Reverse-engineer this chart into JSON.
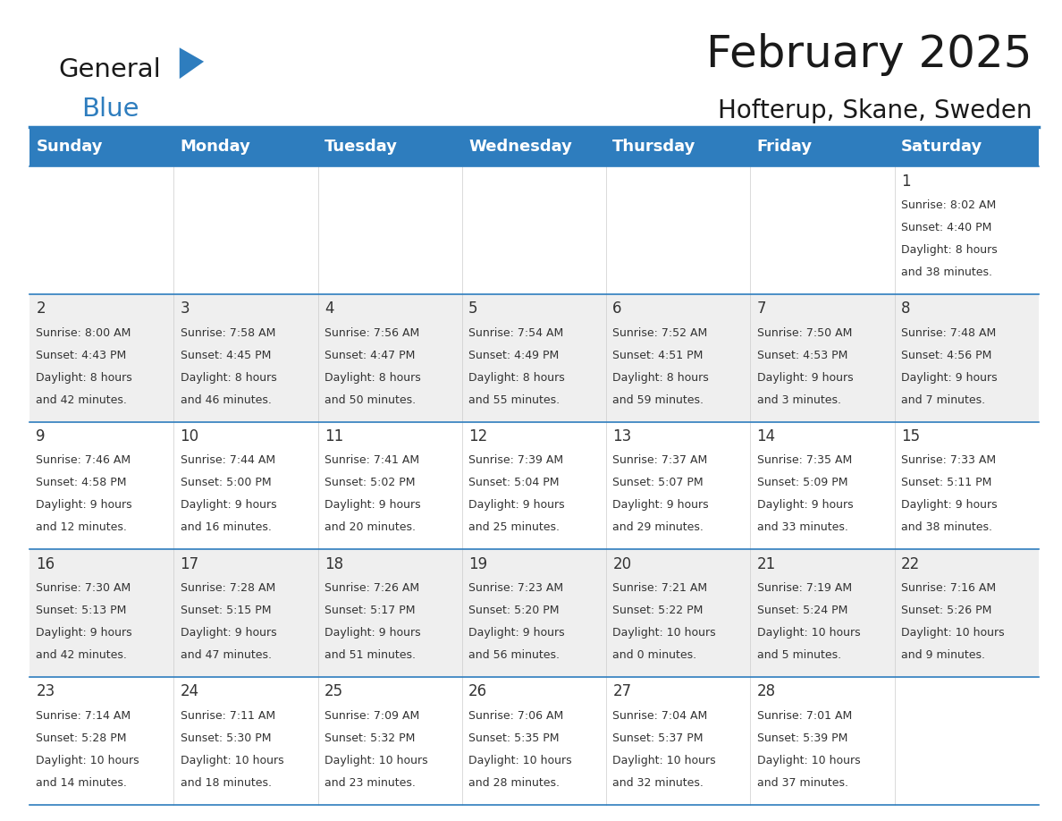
{
  "title": "February 2025",
  "subtitle": "Hofterup, Skane, Sweden",
  "header_bg": "#2E7DBE",
  "header_text_color": "#FFFFFF",
  "cell_bg_white": "#FFFFFF",
  "cell_bg_light": "#EFEFEF",
  "day_headers": [
    "Sunday",
    "Monday",
    "Tuesday",
    "Wednesday",
    "Thursday",
    "Friday",
    "Saturday"
  ],
  "days": [
    {
      "day": 1,
      "col": 6,
      "row": 0,
      "sunrise": "8:02 AM",
      "sunset": "4:40 PM",
      "daylight": "8 hours",
      "daylight2": "and 38 minutes."
    },
    {
      "day": 2,
      "col": 0,
      "row": 1,
      "sunrise": "8:00 AM",
      "sunset": "4:43 PM",
      "daylight": "8 hours",
      "daylight2": "and 42 minutes."
    },
    {
      "day": 3,
      "col": 1,
      "row": 1,
      "sunrise": "7:58 AM",
      "sunset": "4:45 PM",
      "daylight": "8 hours",
      "daylight2": "and 46 minutes."
    },
    {
      "day": 4,
      "col": 2,
      "row": 1,
      "sunrise": "7:56 AM",
      "sunset": "4:47 PM",
      "daylight": "8 hours",
      "daylight2": "and 50 minutes."
    },
    {
      "day": 5,
      "col": 3,
      "row": 1,
      "sunrise": "7:54 AM",
      "sunset": "4:49 PM",
      "daylight": "8 hours",
      "daylight2": "and 55 minutes."
    },
    {
      "day": 6,
      "col": 4,
      "row": 1,
      "sunrise": "7:52 AM",
      "sunset": "4:51 PM",
      "daylight": "8 hours",
      "daylight2": "and 59 minutes."
    },
    {
      "day": 7,
      "col": 5,
      "row": 1,
      "sunrise": "7:50 AM",
      "sunset": "4:53 PM",
      "daylight": "9 hours",
      "daylight2": "and 3 minutes."
    },
    {
      "day": 8,
      "col": 6,
      "row": 1,
      "sunrise": "7:48 AM",
      "sunset": "4:56 PM",
      "daylight": "9 hours",
      "daylight2": "and 7 minutes."
    },
    {
      "day": 9,
      "col": 0,
      "row": 2,
      "sunrise": "7:46 AM",
      "sunset": "4:58 PM",
      "daylight": "9 hours",
      "daylight2": "and 12 minutes."
    },
    {
      "day": 10,
      "col": 1,
      "row": 2,
      "sunrise": "7:44 AM",
      "sunset": "5:00 PM",
      "daylight": "9 hours",
      "daylight2": "and 16 minutes."
    },
    {
      "day": 11,
      "col": 2,
      "row": 2,
      "sunrise": "7:41 AM",
      "sunset": "5:02 PM",
      "daylight": "9 hours",
      "daylight2": "and 20 minutes."
    },
    {
      "day": 12,
      "col": 3,
      "row": 2,
      "sunrise": "7:39 AM",
      "sunset": "5:04 PM",
      "daylight": "9 hours",
      "daylight2": "and 25 minutes."
    },
    {
      "day": 13,
      "col": 4,
      "row": 2,
      "sunrise": "7:37 AM",
      "sunset": "5:07 PM",
      "daylight": "9 hours",
      "daylight2": "and 29 minutes."
    },
    {
      "day": 14,
      "col": 5,
      "row": 2,
      "sunrise": "7:35 AM",
      "sunset": "5:09 PM",
      "daylight": "9 hours",
      "daylight2": "and 33 minutes."
    },
    {
      "day": 15,
      "col": 6,
      "row": 2,
      "sunrise": "7:33 AM",
      "sunset": "5:11 PM",
      "daylight": "9 hours",
      "daylight2": "and 38 minutes."
    },
    {
      "day": 16,
      "col": 0,
      "row": 3,
      "sunrise": "7:30 AM",
      "sunset": "5:13 PM",
      "daylight": "9 hours",
      "daylight2": "and 42 minutes."
    },
    {
      "day": 17,
      "col": 1,
      "row": 3,
      "sunrise": "7:28 AM",
      "sunset": "5:15 PM",
      "daylight": "9 hours",
      "daylight2": "and 47 minutes."
    },
    {
      "day": 18,
      "col": 2,
      "row": 3,
      "sunrise": "7:26 AM",
      "sunset": "5:17 PM",
      "daylight": "9 hours",
      "daylight2": "and 51 minutes."
    },
    {
      "day": 19,
      "col": 3,
      "row": 3,
      "sunrise": "7:23 AM",
      "sunset": "5:20 PM",
      "daylight": "9 hours",
      "daylight2": "and 56 minutes."
    },
    {
      "day": 20,
      "col": 4,
      "row": 3,
      "sunrise": "7:21 AM",
      "sunset": "5:22 PM",
      "daylight": "10 hours",
      "daylight2": "and 0 minutes."
    },
    {
      "day": 21,
      "col": 5,
      "row": 3,
      "sunrise": "7:19 AM",
      "sunset": "5:24 PM",
      "daylight": "10 hours",
      "daylight2": "and 5 minutes."
    },
    {
      "day": 22,
      "col": 6,
      "row": 3,
      "sunrise": "7:16 AM",
      "sunset": "5:26 PM",
      "daylight": "10 hours",
      "daylight2": "and 9 minutes."
    },
    {
      "day": 23,
      "col": 0,
      "row": 4,
      "sunrise": "7:14 AM",
      "sunset": "5:28 PM",
      "daylight": "10 hours",
      "daylight2": "and 14 minutes."
    },
    {
      "day": 24,
      "col": 1,
      "row": 4,
      "sunrise": "7:11 AM",
      "sunset": "5:30 PM",
      "daylight": "10 hours",
      "daylight2": "and 18 minutes."
    },
    {
      "day": 25,
      "col": 2,
      "row": 4,
      "sunrise": "7:09 AM",
      "sunset": "5:32 PM",
      "daylight": "10 hours",
      "daylight2": "and 23 minutes."
    },
    {
      "day": 26,
      "col": 3,
      "row": 4,
      "sunrise": "7:06 AM",
      "sunset": "5:35 PM",
      "daylight": "10 hours",
      "daylight2": "and 28 minutes."
    },
    {
      "day": 27,
      "col": 4,
      "row": 4,
      "sunrise": "7:04 AM",
      "sunset": "5:37 PM",
      "daylight": "10 hours",
      "daylight2": "and 32 minutes."
    },
    {
      "day": 28,
      "col": 5,
      "row": 4,
      "sunrise": "7:01 AM",
      "sunset": "5:39 PM",
      "daylight": "10 hours",
      "daylight2": "and 37 minutes."
    }
  ],
  "num_rows": 5,
  "num_cols": 7,
  "title_fontsize": 36,
  "subtitle_fontsize": 20,
  "header_fontsize": 13,
  "day_num_fontsize": 12,
  "cell_text_fontsize": 9,
  "line_color": "#2E7DBE",
  "text_color": "#333333"
}
